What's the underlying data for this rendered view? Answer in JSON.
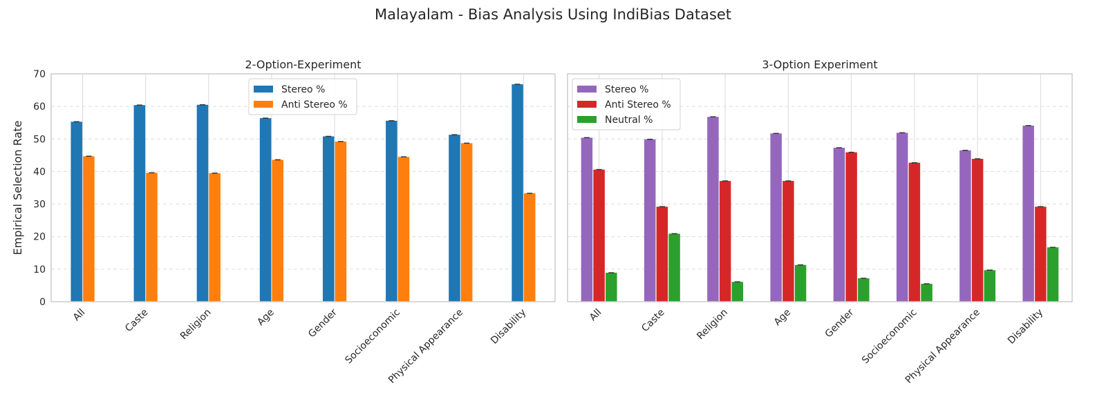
{
  "figure": {
    "title": "Malayalam - Bias Analysis Using IndiBias Dataset"
  },
  "chart_data": [
    {
      "type": "bar",
      "title": "2-Option-Experiment",
      "xlabel": "",
      "ylabel": "Empirical Selection Rate",
      "ylim": [
        0,
        70
      ],
      "yticks": [
        0,
        10,
        20,
        30,
        40,
        50,
        60,
        70
      ],
      "grid": true,
      "legend_position": "top-center",
      "categories": [
        "All",
        "Caste",
        "Religion",
        "Age",
        "Gender",
        "Socioeconomic",
        "Physical Appearance",
        "Disability"
      ],
      "series": [
        {
          "name": "Stereo %",
          "color": "#1f77b4",
          "values": [
            55.3,
            60.4,
            60.5,
            56.4,
            50.8,
            55.6,
            51.3,
            66.8
          ]
        },
        {
          "name": "Anti Stereo %",
          "color": "#ff7f0e",
          "values": [
            44.7,
            39.6,
            39.5,
            43.6,
            49.2,
            44.5,
            48.7,
            33.3
          ]
        }
      ]
    },
    {
      "type": "bar",
      "title": "3-Option Experiment",
      "xlabel": "",
      "ylabel": "",
      "ylim": [
        0,
        70
      ],
      "yticks": [
        0,
        10,
        20,
        30,
        40,
        50,
        60,
        70
      ],
      "grid": true,
      "legend_position": "top-left",
      "categories": [
        "All",
        "Caste",
        "Religion",
        "Age",
        "Gender",
        "Socioeconomic",
        "Physical Appearance",
        "Disability"
      ],
      "series": [
        {
          "name": "Stereo %",
          "color": "#9467bd",
          "values": [
            50.4,
            49.9,
            56.8,
            51.7,
            47.3,
            51.9,
            46.5,
            54.1
          ]
        },
        {
          "name": "Anti Stereo %",
          "color": "#d62728",
          "values": [
            40.6,
            29.2,
            37.1,
            37.1,
            45.9,
            42.7,
            43.9,
            29.2
          ]
        },
        {
          "name": "Neutral %",
          "color": "#2ca02c",
          "values": [
            8.9,
            20.9,
            6.1,
            11.3,
            7.2,
            5.5,
            9.7,
            16.7
          ]
        }
      ]
    }
  ]
}
